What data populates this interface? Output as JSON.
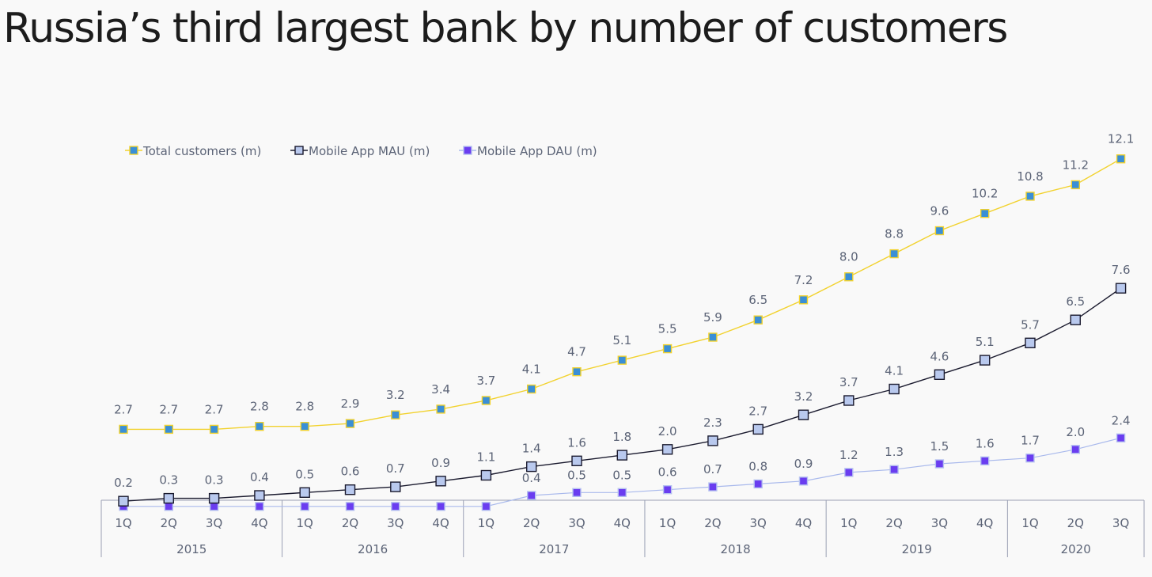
{
  "title": "Russia’s third largest bank by number of customers",
  "colors": {
    "background": "#f9f9f9",
    "axis": "#9aa0b4",
    "label_text": "#5c6477",
    "total_line": "#f2d22e",
    "total_marker_fill": "#3a8fd6",
    "total_marker_stroke": "#f2d22e",
    "mau_line": "#1a1a2e",
    "mau_marker_fill": "#b9c9ee",
    "mau_marker_stroke": "#1a1a2e",
    "dau_line": "#a9b9ec",
    "dau_marker_fill": "#6a3df0",
    "dau_marker_stroke": "#b5c1f0"
  },
  "chart_data": {
    "type": "line",
    "title": "Russia’s third largest bank by number of customers",
    "categories": [
      "1Q",
      "2Q",
      "3Q",
      "4Q",
      "1Q",
      "2Q",
      "3Q",
      "4Q",
      "1Q",
      "2Q",
      "3Q",
      "4Q",
      "1Q",
      "2Q",
      "3Q",
      "4Q",
      "1Q",
      "2Q",
      "3Q",
      "4Q",
      "1Q",
      "2Q",
      "3Q"
    ],
    "year_groups": [
      {
        "label": "2015",
        "count": 4
      },
      {
        "label": "2016",
        "count": 4
      },
      {
        "label": "2017",
        "count": 4
      },
      {
        "label": "2018",
        "count": 4
      },
      {
        "label": "2019",
        "count": 4
      },
      {
        "label": "2020",
        "count": 3
      }
    ],
    "series": [
      {
        "name": "Total customers (m)",
        "key": "total",
        "values": [
          2.7,
          2.7,
          2.7,
          2.8,
          2.8,
          2.9,
          3.2,
          3.4,
          3.7,
          4.1,
          4.7,
          5.1,
          5.5,
          5.9,
          6.5,
          7.2,
          8.0,
          8.8,
          9.6,
          10.2,
          10.8,
          11.2,
          12.1
        ],
        "labels": [
          "2.7",
          "2.7",
          "2.7",
          "2.8",
          "2.8",
          "2.9",
          "3.2",
          "3.4",
          "3.7",
          "4.1",
          "4.7",
          "5.1",
          "5.5",
          "5.9",
          "6.5",
          "7.2",
          "8.0",
          "8.8",
          "9.6",
          "10.2",
          "10.8",
          "11.2",
          "12.1"
        ]
      },
      {
        "name": "Mobile App MAU (m)",
        "key": "mau",
        "values": [
          0.2,
          0.3,
          0.3,
          0.4,
          0.5,
          0.6,
          0.7,
          0.9,
          1.1,
          1.4,
          1.6,
          1.8,
          2.0,
          2.3,
          2.7,
          3.2,
          3.7,
          4.1,
          4.6,
          5.1,
          5.7,
          6.5,
          7.6
        ],
        "labels": [
          "0.2",
          "0.3",
          "0.3",
          "0.4",
          "0.5",
          "0.6",
          "0.7",
          "0.9",
          "1.1",
          "1.4",
          "1.6",
          "1.8",
          "2.0",
          "2.3",
          "2.7",
          "3.2",
          "3.7",
          "4.1",
          "4.6",
          "5.1",
          "5.7",
          "6.5",
          "7.6"
        ]
      },
      {
        "name": "Mobile App DAU (m)",
        "key": "dau",
        "values": [
          null,
          null,
          null,
          null,
          null,
          null,
          null,
          null,
          null,
          0.4,
          0.5,
          0.5,
          0.6,
          0.7,
          0.8,
          0.9,
          1.2,
          1.3,
          1.5,
          1.6,
          1.7,
          2.0,
          2.4
        ],
        "labels": [
          "",
          "",
          "",
          "",
          "",
          "",
          "",
          "",
          "",
          "0.4",
          "0.5",
          "0.5",
          "0.6",
          "0.7",
          "0.8",
          "0.9",
          "1.2",
          "1.3",
          "1.5",
          "1.6",
          "1.7",
          "2.0",
          "2.4"
        ]
      }
    ],
    "ylim": [
      0,
      13
    ],
    "legend": "top-left",
    "grid": false
  }
}
